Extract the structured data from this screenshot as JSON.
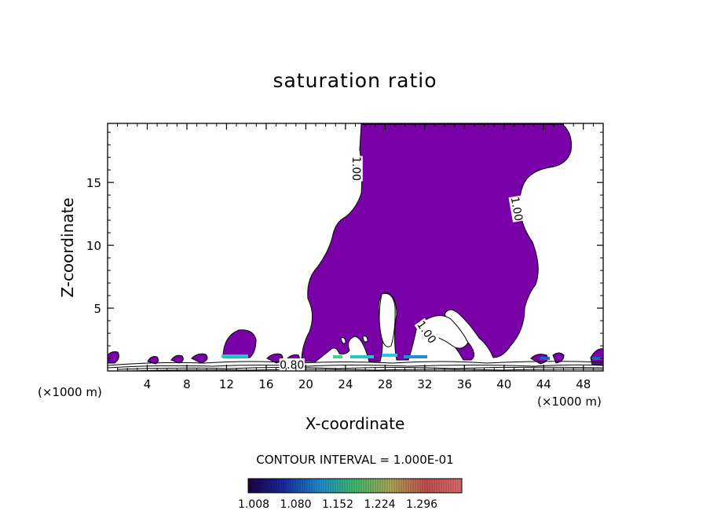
{
  "chart_data": {
    "type": "contour",
    "title": "saturation ratio",
    "xlabel": "X-coordinate",
    "ylabel": "Z-coordinate",
    "x_unit": "(×1000 m)",
    "x_ticks": [
      4,
      8,
      12,
      16,
      20,
      24,
      28,
      32,
      36,
      40,
      44,
      48
    ],
    "y_ticks": [
      5,
      10,
      15
    ],
    "xlim": [
      0,
      50
    ],
    "ylim": [
      0,
      19.7
    ],
    "contour_interval_text": "CONTOUR INTERVAL = 1.000E-01",
    "contour_labels": [
      {
        "text": "1.00",
        "x": 25.1,
        "z": 16.1,
        "rotation": 90
      },
      {
        "text": "1.00",
        "x": 41.3,
        "z": 12.9,
        "rotation": 80
      },
      {
        "text": "1.00",
        "x": 32.2,
        "z": 3.1,
        "rotation": 55
      },
      {
        "text": "0.80",
        "x": 18.6,
        "z": 0.5,
        "rotation": 0
      }
    ],
    "fill_color": "#7a00a8",
    "colorbar": {
      "labels": [
        "1.008",
        "1.080",
        "1.152",
        "1.224",
        "1.296"
      ],
      "colors": [
        "#200040",
        "#1a2aa8",
        "#1e8fd0",
        "#40c070",
        "#b0a858",
        "#c85050",
        "#e07070"
      ]
    }
  }
}
